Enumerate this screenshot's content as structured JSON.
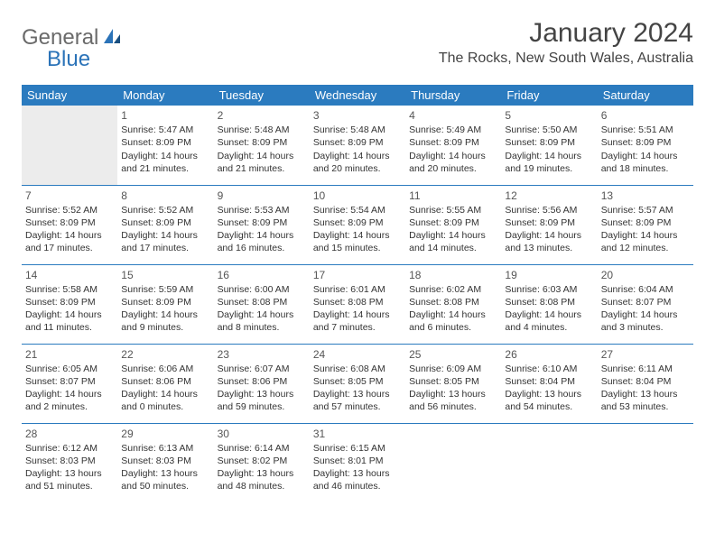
{
  "logo": {
    "left": "General",
    "right": "Blue"
  },
  "title": "January 2024",
  "location": "The Rocks, New South Wales, Australia",
  "colors": {
    "header_bg": "#2b7bbf",
    "header_text": "#ffffff",
    "rule": "#2b7bbf",
    "empty_bg": "#ececec",
    "logo_left": "#6a6a6a",
    "logo_right": "#2b73b8"
  },
  "weekday_labels": [
    "Sunday",
    "Monday",
    "Tuesday",
    "Wednesday",
    "Thursday",
    "Friday",
    "Saturday"
  ],
  "weeks": [
    [
      {
        "empty": true
      },
      {
        "day": "1",
        "sunrise": "Sunrise: 5:47 AM",
        "sunset": "Sunset: 8:09 PM",
        "daylight1": "Daylight: 14 hours",
        "daylight2": "and 21 minutes."
      },
      {
        "day": "2",
        "sunrise": "Sunrise: 5:48 AM",
        "sunset": "Sunset: 8:09 PM",
        "daylight1": "Daylight: 14 hours",
        "daylight2": "and 21 minutes."
      },
      {
        "day": "3",
        "sunrise": "Sunrise: 5:48 AM",
        "sunset": "Sunset: 8:09 PM",
        "daylight1": "Daylight: 14 hours",
        "daylight2": "and 20 minutes."
      },
      {
        "day": "4",
        "sunrise": "Sunrise: 5:49 AM",
        "sunset": "Sunset: 8:09 PM",
        "daylight1": "Daylight: 14 hours",
        "daylight2": "and 20 minutes."
      },
      {
        "day": "5",
        "sunrise": "Sunrise: 5:50 AM",
        "sunset": "Sunset: 8:09 PM",
        "daylight1": "Daylight: 14 hours",
        "daylight2": "and 19 minutes."
      },
      {
        "day": "6",
        "sunrise": "Sunrise: 5:51 AM",
        "sunset": "Sunset: 8:09 PM",
        "daylight1": "Daylight: 14 hours",
        "daylight2": "and 18 minutes."
      }
    ],
    [
      {
        "day": "7",
        "sunrise": "Sunrise: 5:52 AM",
        "sunset": "Sunset: 8:09 PM",
        "daylight1": "Daylight: 14 hours",
        "daylight2": "and 17 minutes."
      },
      {
        "day": "8",
        "sunrise": "Sunrise: 5:52 AM",
        "sunset": "Sunset: 8:09 PM",
        "daylight1": "Daylight: 14 hours",
        "daylight2": "and 17 minutes."
      },
      {
        "day": "9",
        "sunrise": "Sunrise: 5:53 AM",
        "sunset": "Sunset: 8:09 PM",
        "daylight1": "Daylight: 14 hours",
        "daylight2": "and 16 minutes."
      },
      {
        "day": "10",
        "sunrise": "Sunrise: 5:54 AM",
        "sunset": "Sunset: 8:09 PM",
        "daylight1": "Daylight: 14 hours",
        "daylight2": "and 15 minutes."
      },
      {
        "day": "11",
        "sunrise": "Sunrise: 5:55 AM",
        "sunset": "Sunset: 8:09 PM",
        "daylight1": "Daylight: 14 hours",
        "daylight2": "and 14 minutes."
      },
      {
        "day": "12",
        "sunrise": "Sunrise: 5:56 AM",
        "sunset": "Sunset: 8:09 PM",
        "daylight1": "Daylight: 14 hours",
        "daylight2": "and 13 minutes."
      },
      {
        "day": "13",
        "sunrise": "Sunrise: 5:57 AM",
        "sunset": "Sunset: 8:09 PM",
        "daylight1": "Daylight: 14 hours",
        "daylight2": "and 12 minutes."
      }
    ],
    [
      {
        "day": "14",
        "sunrise": "Sunrise: 5:58 AM",
        "sunset": "Sunset: 8:09 PM",
        "daylight1": "Daylight: 14 hours",
        "daylight2": "and 11 minutes."
      },
      {
        "day": "15",
        "sunrise": "Sunrise: 5:59 AM",
        "sunset": "Sunset: 8:09 PM",
        "daylight1": "Daylight: 14 hours",
        "daylight2": "and 9 minutes."
      },
      {
        "day": "16",
        "sunrise": "Sunrise: 6:00 AM",
        "sunset": "Sunset: 8:08 PM",
        "daylight1": "Daylight: 14 hours",
        "daylight2": "and 8 minutes."
      },
      {
        "day": "17",
        "sunrise": "Sunrise: 6:01 AM",
        "sunset": "Sunset: 8:08 PM",
        "daylight1": "Daylight: 14 hours",
        "daylight2": "and 7 minutes."
      },
      {
        "day": "18",
        "sunrise": "Sunrise: 6:02 AM",
        "sunset": "Sunset: 8:08 PM",
        "daylight1": "Daylight: 14 hours",
        "daylight2": "and 6 minutes."
      },
      {
        "day": "19",
        "sunrise": "Sunrise: 6:03 AM",
        "sunset": "Sunset: 8:08 PM",
        "daylight1": "Daylight: 14 hours",
        "daylight2": "and 4 minutes."
      },
      {
        "day": "20",
        "sunrise": "Sunrise: 6:04 AM",
        "sunset": "Sunset: 8:07 PM",
        "daylight1": "Daylight: 14 hours",
        "daylight2": "and 3 minutes."
      }
    ],
    [
      {
        "day": "21",
        "sunrise": "Sunrise: 6:05 AM",
        "sunset": "Sunset: 8:07 PM",
        "daylight1": "Daylight: 14 hours",
        "daylight2": "and 2 minutes."
      },
      {
        "day": "22",
        "sunrise": "Sunrise: 6:06 AM",
        "sunset": "Sunset: 8:06 PM",
        "daylight1": "Daylight: 14 hours",
        "daylight2": "and 0 minutes."
      },
      {
        "day": "23",
        "sunrise": "Sunrise: 6:07 AM",
        "sunset": "Sunset: 8:06 PM",
        "daylight1": "Daylight: 13 hours",
        "daylight2": "and 59 minutes."
      },
      {
        "day": "24",
        "sunrise": "Sunrise: 6:08 AM",
        "sunset": "Sunset: 8:05 PM",
        "daylight1": "Daylight: 13 hours",
        "daylight2": "and 57 minutes."
      },
      {
        "day": "25",
        "sunrise": "Sunrise: 6:09 AM",
        "sunset": "Sunset: 8:05 PM",
        "daylight1": "Daylight: 13 hours",
        "daylight2": "and 56 minutes."
      },
      {
        "day": "26",
        "sunrise": "Sunrise: 6:10 AM",
        "sunset": "Sunset: 8:04 PM",
        "daylight1": "Daylight: 13 hours",
        "daylight2": "and 54 minutes."
      },
      {
        "day": "27",
        "sunrise": "Sunrise: 6:11 AM",
        "sunset": "Sunset: 8:04 PM",
        "daylight1": "Daylight: 13 hours",
        "daylight2": "and 53 minutes."
      }
    ],
    [
      {
        "day": "28",
        "sunrise": "Sunrise: 6:12 AM",
        "sunset": "Sunset: 8:03 PM",
        "daylight1": "Daylight: 13 hours",
        "daylight2": "and 51 minutes."
      },
      {
        "day": "29",
        "sunrise": "Sunrise: 6:13 AM",
        "sunset": "Sunset: 8:03 PM",
        "daylight1": "Daylight: 13 hours",
        "daylight2": "and 50 minutes."
      },
      {
        "day": "30",
        "sunrise": "Sunrise: 6:14 AM",
        "sunset": "Sunset: 8:02 PM",
        "daylight1": "Daylight: 13 hours",
        "daylight2": "and 48 minutes."
      },
      {
        "day": "31",
        "sunrise": "Sunrise: 6:15 AM",
        "sunset": "Sunset: 8:01 PM",
        "daylight1": "Daylight: 13 hours",
        "daylight2": "and 46 minutes."
      },
      {
        "empty": true,
        "trailing": true
      },
      {
        "empty": true,
        "trailing": true
      },
      {
        "empty": true,
        "trailing": true
      }
    ]
  ]
}
